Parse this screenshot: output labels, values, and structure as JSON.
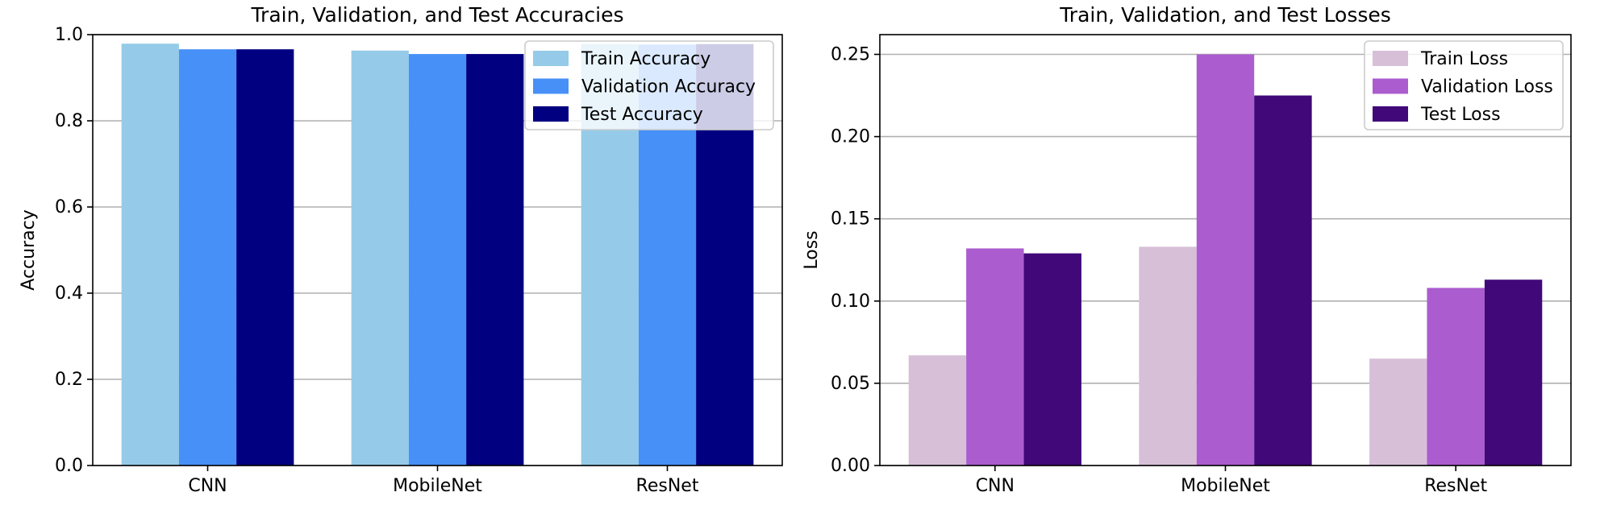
{
  "chart_data": [
    {
      "type": "bar",
      "title": "Train, Validation, and Test Accuracies",
      "xlabel": "",
      "ylabel": "Accuracy",
      "ylim": [
        0,
        1.0
      ],
      "yticks": [
        "0.0",
        "0.2",
        "0.4",
        "0.6",
        "0.8",
        "1.0"
      ],
      "ytick_values": [
        0,
        0.2,
        0.4,
        0.6,
        0.8,
        1.0
      ],
      "grid": "horizontal",
      "legend_position": "top-right",
      "categories": [
        "CNN",
        "MobileNet",
        "ResNet"
      ],
      "series": [
        {
          "name": "Train Accuracy",
          "color": "#95cbe8",
          "values": [
            0.979,
            0.963,
            0.978
          ]
        },
        {
          "name": "Validation Accuracy",
          "color": "#4790f7",
          "values": [
            0.966,
            0.955,
            0.977
          ]
        },
        {
          "name": "Test Accuracy",
          "color": "#000080",
          "values": [
            0.966,
            0.955,
            0.978
          ]
        }
      ]
    },
    {
      "type": "bar",
      "title": "Train, Validation, and Test Losses",
      "xlabel": "",
      "ylabel": "Loss",
      "ylim": [
        0,
        0.262
      ],
      "yticks": [
        "0.00",
        "0.05",
        "0.10",
        "0.15",
        "0.20",
        "0.25"
      ],
      "ytick_values": [
        0,
        0.05,
        0.1,
        0.15,
        0.2,
        0.25
      ],
      "grid": "horizontal",
      "legend_position": "top-right",
      "categories": [
        "CNN",
        "MobileNet",
        "ResNet"
      ],
      "series": [
        {
          "name": "Train Loss",
          "color": "#d8bfd8",
          "values": [
            0.067,
            0.133,
            0.065
          ]
        },
        {
          "name": "Validation Loss",
          "color": "#ab5ccf",
          "values": [
            0.132,
            0.25,
            0.108
          ]
        },
        {
          "name": "Test Loss",
          "color": "#400878",
          "values": [
            0.129,
            0.225,
            0.113
          ]
        }
      ]
    }
  ]
}
